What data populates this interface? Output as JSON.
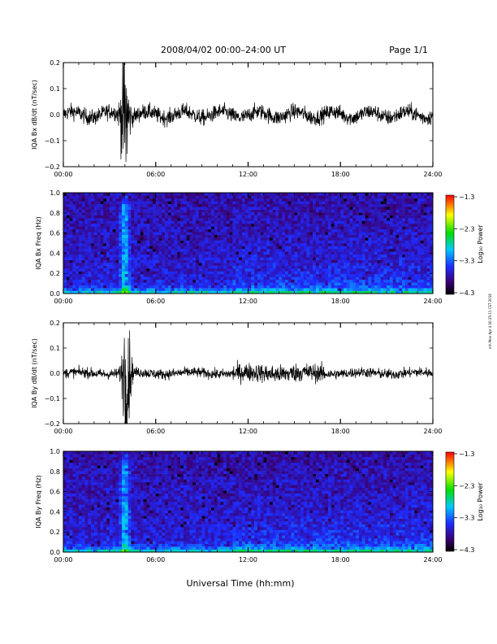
{
  "header": {
    "title": "2008/04/02  00:00–24:00 UT",
    "page": "Page 1/1"
  },
  "footer": {
    "xlabel": "Universal Time (hh:mm)",
    "side_note": "mh Mon Apr 4 00:35:11 CST 2016"
  },
  "chart_data": [
    {
      "type": "line",
      "ylabel": "IQA Bx dB/dt (nT/sec)",
      "xlim": [
        0,
        24
      ],
      "xticks": [
        "00:00",
        "06:00",
        "12:00",
        "18:00",
        "24:00"
      ],
      "ylim": [
        -0.2,
        0.2
      ],
      "yticks": [
        "−0.2",
        "−0.1",
        "0.0",
        "0.1",
        "0.2"
      ],
      "burst_center_h": 4.0,
      "burst_amplitude": 0.2,
      "background_amplitude": 0.03
    },
    {
      "type": "heatmap",
      "ylabel": "IQA Bx Freq (Hz)",
      "xlim": [
        0,
        24
      ],
      "xticks": [
        "00:00",
        "06:00",
        "12:00",
        "18:00",
        "24:00"
      ],
      "ylim": [
        0.0,
        1.0
      ],
      "yticks": [
        "0.0",
        "0.2",
        "0.4",
        "0.6",
        "0.8",
        "1.0"
      ],
      "colorbar": {
        "label": "Log₁₀ Power",
        "ticks": [
          "−1.3",
          "−2.3",
          "−3.3",
          "−4.3"
        ],
        "range": [
          -4.3,
          -1.3
        ]
      }
    },
    {
      "type": "line",
      "ylabel": "IQA By dB/dt (nT/sec)",
      "xlim": [
        0,
        24
      ],
      "xticks": [
        "00:00",
        "06:00",
        "12:00",
        "18:00",
        "24:00"
      ],
      "ylim": [
        -0.2,
        0.2
      ],
      "yticks": [
        "−0.2",
        "−0.1",
        "0.0",
        "0.1",
        "0.2"
      ],
      "burst_center_h": 4.1,
      "burst_amplitude": 0.2,
      "background_amplitude": 0.02
    },
    {
      "type": "heatmap",
      "ylabel": "IQA By Freq (Hz)",
      "xlim": [
        0,
        24
      ],
      "xticks": [
        "00:00",
        "06:00",
        "12:00",
        "18:00",
        "24:00"
      ],
      "ylim": [
        0.0,
        1.0
      ],
      "yticks": [
        "0.0",
        "0.2",
        "0.4",
        "0.6",
        "0.8",
        "1.0"
      ],
      "colorbar": {
        "label": "Log₁₀ Power",
        "ticks": [
          "−1.3",
          "−2.3",
          "−3.3",
          "−4.3"
        ],
        "range": [
          -4.3,
          -1.3
        ]
      }
    }
  ]
}
